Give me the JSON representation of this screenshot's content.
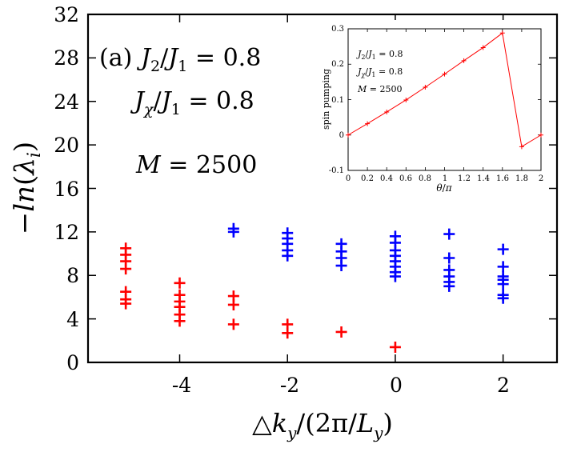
{
  "chart_data": [
    {
      "type": "scatter",
      "panel_label": "(a)",
      "annotations": {
        "line1_var": "J",
        "line1_sub2": "2",
        "line1_slash": "/",
        "line1_var2": "J",
        "line1_sub1": "1",
        "line1_eq": " = 0.8",
        "line2_var": "J",
        "line2_subchi": "χ",
        "line2_slash": "/",
        "line2_var2": "J",
        "line2_sub1": "1",
        "line2_eq": " = 0.8",
        "line3_var": "M",
        "line3_eq": " = 2500"
      },
      "xlabel": "△k_y/(2π/L_y)",
      "ylabel": "−ln(λ_i)",
      "xlabel_parts": {
        "tri": "△",
        "k": "k",
        "y": "y",
        "rest1": "/(2π/",
        "L": "L",
        "y2": "y",
        "rest2": ")"
      },
      "ylabel_parts": {
        "minus": "−",
        "ln": "ln",
        "open": "(",
        "lambda": "λ",
        "i": "i",
        "close": ")"
      },
      "xlim": [
        -5.7,
        3.0
      ],
      "ylim": [
        0,
        32
      ],
      "xticks": [
        -4,
        -2,
        0,
        2
      ],
      "yticks": [
        0,
        4,
        8,
        12,
        16,
        20,
        24,
        28,
        32
      ],
      "series": [
        {
          "name": "red",
          "color": "#ff0000",
          "marker": "+",
          "points": [
            [
              -5,
              5.4
            ],
            [
              -5,
              5.8
            ],
            [
              -5,
              6.5
            ],
            [
              -5,
              8.6
            ],
            [
              -5,
              9.3
            ],
            [
              -5,
              9.9
            ],
            [
              -5,
              10.5
            ],
            [
              -4,
              3.8
            ],
            [
              -4,
              4.4
            ],
            [
              -4,
              5.1
            ],
            [
              -4,
              5.6
            ],
            [
              -4,
              6.2
            ],
            [
              -4,
              7.3
            ],
            [
              -3,
              3.5
            ],
            [
              -3,
              5.3
            ],
            [
              -3,
              6.1
            ],
            [
              -2,
              2.7
            ],
            [
              -2,
              3.5
            ],
            [
              -1,
              2.8
            ],
            [
              0,
              1.4
            ]
          ]
        },
        {
          "name": "blue",
          "color": "#0000ff",
          "marker": "+",
          "points": [
            [
              -3,
              12.0
            ],
            [
              -3,
              12.3
            ],
            [
              -2,
              9.8
            ],
            [
              -2,
              10.3
            ],
            [
              -2,
              10.9
            ],
            [
              -2,
              11.4
            ],
            [
              -2,
              11.9
            ],
            [
              -1,
              8.9
            ],
            [
              -1,
              9.6
            ],
            [
              -1,
              10.2
            ],
            [
              -1,
              10.9
            ],
            [
              0,
              7.9
            ],
            [
              0,
              8.3
            ],
            [
              0,
              8.8
            ],
            [
              0,
              9.3
            ],
            [
              0,
              9.8
            ],
            [
              0,
              10.3
            ],
            [
              0,
              11.0
            ],
            [
              0,
              11.6
            ],
            [
              1,
              7.0
            ],
            [
              1,
              7.4
            ],
            [
              1,
              7.9
            ],
            [
              1,
              8.5
            ],
            [
              1,
              9.6
            ],
            [
              1,
              11.8
            ],
            [
              2,
              5.9
            ],
            [
              2,
              6.2
            ],
            [
              2,
              7.2
            ],
            [
              2,
              7.6
            ],
            [
              2,
              7.9
            ],
            [
              2,
              8.8
            ],
            [
              2,
              10.4
            ]
          ]
        }
      ]
    },
    {
      "type": "line",
      "inset": true,
      "xlabel_parts": {
        "theta": "θ",
        "slash": "/",
        "pi": "π"
      },
      "ylabel": "spin pumping",
      "annotations": {
        "l1_var": "J",
        "l1_sub": "2",
        "l1_slash": "/",
        "l1_var2": "J",
        "l1_sub1": "1",
        "l1_eq": " = 0.8",
        "l2_var": "J",
        "l2_sub": "χ",
        "l2_slash": "/",
        "l2_var2": "J",
        "l2_sub1": "1",
        "l2_eq": " = 0.8",
        "l3_var": "M",
        "l3_eq": " = 2500"
      },
      "xlim": [
        0,
        2
      ],
      "ylim": [
        -0.1,
        0.3
      ],
      "xticks": [
        "0",
        "0.2",
        "0.4",
        "0.6",
        "0.8",
        "1",
        "1.2",
        "1.4",
        "1.6",
        "1.8",
        "2"
      ],
      "yticks": [
        "-0.1",
        "0",
        "0.1",
        "0.2",
        "0.3"
      ],
      "color": "#ff0000",
      "x": [
        0,
        0.2,
        0.4,
        0.6,
        0.8,
        1.0,
        1.2,
        1.4,
        1.6,
        1.8,
        2.0
      ],
      "y": [
        0,
        0.032,
        0.065,
        0.099,
        0.135,
        0.172,
        0.21,
        0.247,
        0.288,
        -0.033,
        0
      ]
    }
  ]
}
